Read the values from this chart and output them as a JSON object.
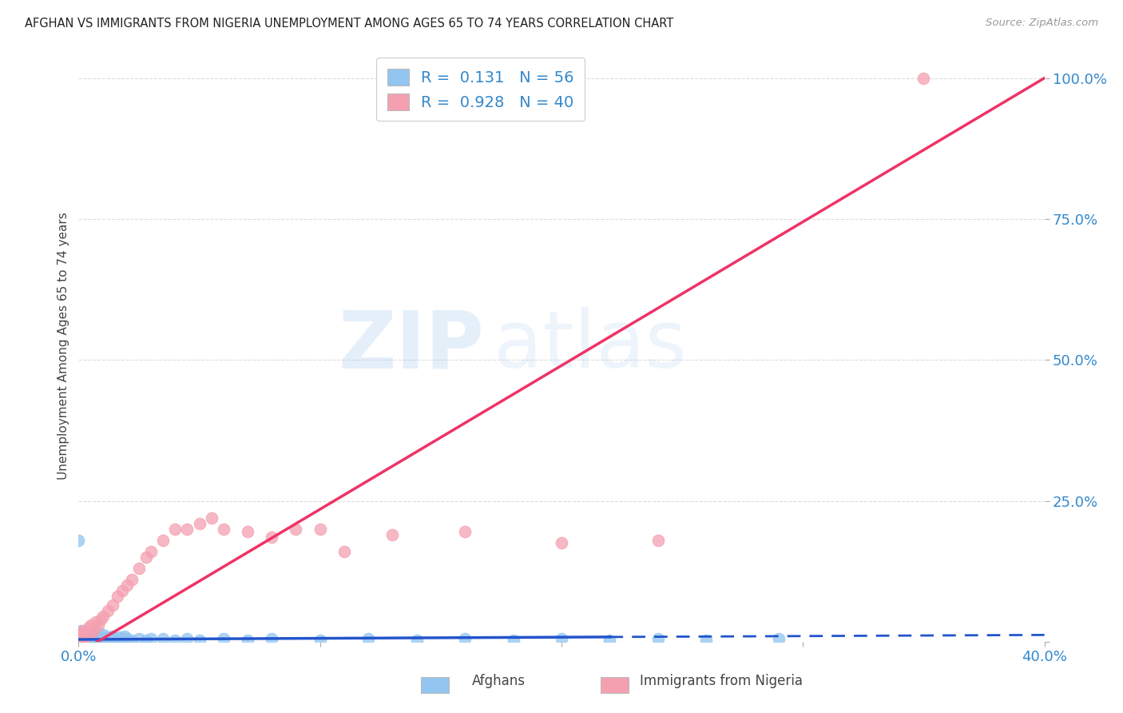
{
  "title": "AFGHAN VS IMMIGRANTS FROM NIGERIA UNEMPLOYMENT AMONG AGES 65 TO 74 YEARS CORRELATION CHART",
  "source": "Source: ZipAtlas.com",
  "ylabel": "Unemployment Among Ages 65 to 74 years",
  "xlim": [
    0.0,
    0.4
  ],
  "ylim": [
    0.0,
    1.05
  ],
  "yticks": [
    0.0,
    0.25,
    0.5,
    0.75,
    1.0
  ],
  "ytick_labels": [
    "",
    "25.0%",
    "50.0%",
    "75.0%",
    "100.0%"
  ],
  "xticks": [
    0.0,
    0.1,
    0.2,
    0.3,
    0.4
  ],
  "xtick_labels": [
    "0.0%",
    "",
    "",
    "",
    "40.0%"
  ],
  "afghan_R": 0.131,
  "afghan_N": 56,
  "nigeria_R": 0.928,
  "nigeria_N": 40,
  "afghan_color": "#92C5F0",
  "nigeria_color": "#F4A0B0",
  "afghan_line_color": "#2255CC",
  "nigeria_line_color": "#EE3366",
  "afghan_scatter_x": [
    0.0,
    0.0,
    0.0,
    0.001,
    0.001,
    0.001,
    0.002,
    0.002,
    0.002,
    0.003,
    0.003,
    0.003,
    0.004,
    0.004,
    0.005,
    0.005,
    0.006,
    0.006,
    0.007,
    0.007,
    0.008,
    0.008,
    0.009,
    0.01,
    0.01,
    0.011,
    0.012,
    0.013,
    0.014,
    0.015,
    0.016,
    0.017,
    0.018,
    0.019,
    0.02,
    0.022,
    0.025,
    0.028,
    0.03,
    0.035,
    0.04,
    0.045,
    0.05,
    0.06,
    0.07,
    0.08,
    0.1,
    0.12,
    0.14,
    0.16,
    0.18,
    0.2,
    0.22,
    0.24,
    0.26,
    0.29
  ],
  "afghan_scatter_y": [
    0.0,
    0.002,
    0.18,
    0.0,
    0.01,
    0.02,
    0.0,
    0.005,
    0.015,
    0.0,
    0.008,
    0.012,
    0.002,
    0.006,
    0.0,
    0.01,
    0.002,
    0.008,
    0.003,
    0.01,
    0.005,
    0.015,
    0.003,
    0.0,
    0.012,
    0.005,
    0.008,
    0.003,
    0.01,
    0.005,
    0.0,
    0.008,
    0.003,
    0.01,
    0.005,
    0.003,
    0.005,
    0.003,
    0.005,
    0.005,
    0.003,
    0.005,
    0.003,
    0.005,
    0.003,
    0.005,
    0.003,
    0.005,
    0.003,
    0.005,
    0.003,
    0.005,
    0.003,
    0.005,
    0.003,
    0.005
  ],
  "nigeria_scatter_x": [
    0.0,
    0.0,
    0.001,
    0.001,
    0.002,
    0.002,
    0.003,
    0.004,
    0.005,
    0.005,
    0.006,
    0.007,
    0.008,
    0.009,
    0.01,
    0.012,
    0.014,
    0.016,
    0.018,
    0.02,
    0.022,
    0.025,
    0.028,
    0.03,
    0.035,
    0.04,
    0.045,
    0.05,
    0.055,
    0.06,
    0.07,
    0.08,
    0.09,
    0.1,
    0.11,
    0.13,
    0.16,
    0.2,
    0.24,
    0.35
  ],
  "nigeria_scatter_y": [
    0.0,
    0.01,
    0.0,
    0.015,
    0.005,
    0.02,
    0.01,
    0.025,
    0.015,
    0.03,
    0.02,
    0.035,
    0.03,
    0.04,
    0.045,
    0.055,
    0.065,
    0.08,
    0.09,
    0.1,
    0.11,
    0.13,
    0.15,
    0.16,
    0.18,
    0.2,
    0.2,
    0.21,
    0.22,
    0.2,
    0.195,
    0.185,
    0.2,
    0.2,
    0.16,
    0.19,
    0.195,
    0.175,
    0.18,
    1.0
  ],
  "watermark_zip": "ZIP",
  "watermark_atlas": "atlas",
  "background_color": "#FFFFFF",
  "grid_color": "#DDDDDD",
  "legend_label_1": "R =  0.131   N = 56",
  "legend_label_2": "R =  0.928   N = 40",
  "bottom_label_1": "Afghans",
  "bottom_label_2": "Immigrants from Nigeria"
}
